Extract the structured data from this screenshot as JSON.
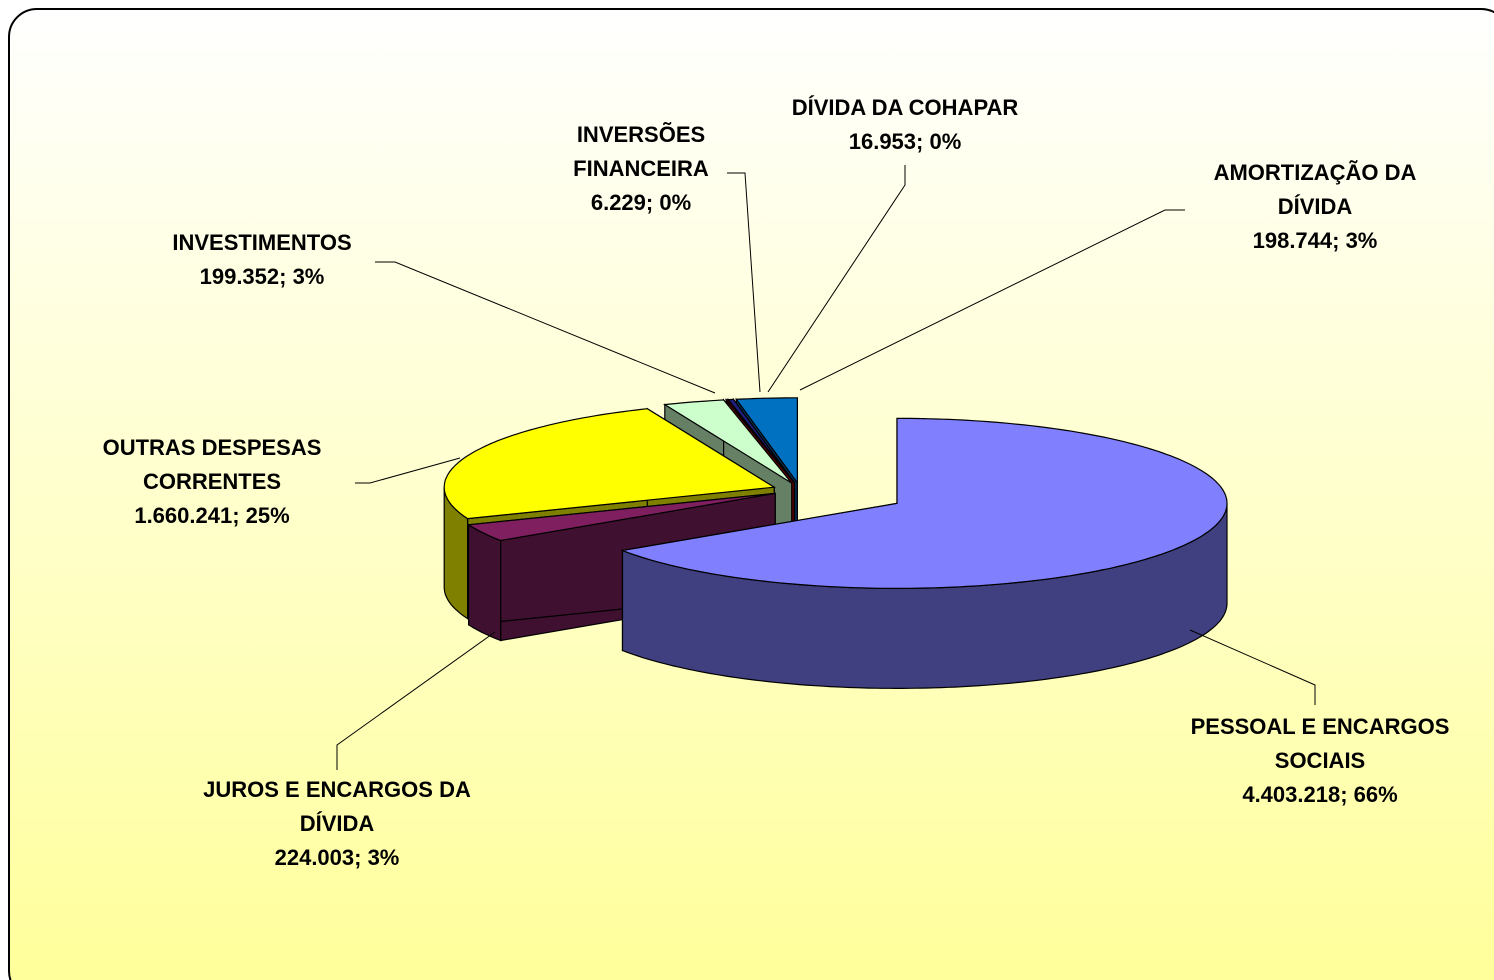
{
  "chart_data": {
    "type": "pie3d",
    "categories": [
      "PESSOAL E ENCARGOS SOCIAIS",
      "JUROS E ENCARGOS DA DÍVIDA",
      "OUTRAS DESPESAS CORRENTES",
      "INVESTIMENTOS",
      "INVERSÕES FINANCEIRA",
      "DÍVIDA DA COHAPAR",
      "AMORTIZAÇÃO DA DÍVIDA"
    ],
    "values": [
      4403218,
      224003,
      1660241,
      199352,
      6229,
      16953,
      198744
    ],
    "value_labels": [
      "4.403.218; 66%",
      "224.003; 3%",
      "1.660.241; 25%",
      "199.352; 3%",
      "6.229; 0%",
      "16.953; 0%",
      "198.744; 3%"
    ],
    "colors": [
      "#8080ff",
      "#7f1f5f",
      "#ffff00",
      "#ccffcc",
      "#cc0000",
      "#1f1f7f",
      "#0070c0"
    ]
  }
}
